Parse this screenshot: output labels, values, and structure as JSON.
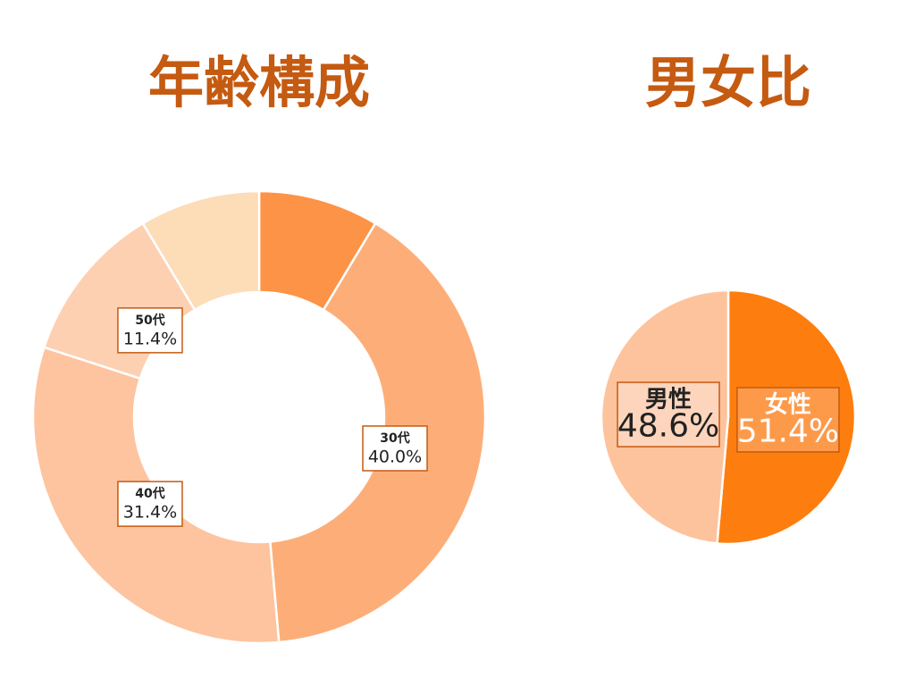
{
  "chart_data": [
    {
      "type": "donut",
      "title": "年齢構成",
      "categories": [
        null,
        "30代",
        "40代",
        "50代",
        null
      ],
      "values": [
        8.6,
        40.0,
        31.4,
        11.4,
        8.6
      ],
      "value_labels": [
        null,
        "40.0%",
        "31.4%",
        "11.4%",
        null
      ],
      "colors": [
        "#fd9346",
        "#fdae78",
        "#fdc49f",
        "#fdd0b2",
        "#fddcb8"
      ]
    },
    {
      "type": "pie",
      "title": "男女比",
      "categories": [
        "女性",
        "男性"
      ],
      "values": [
        51.4,
        48.6
      ],
      "value_labels": [
        "51.4%",
        "48.6%"
      ],
      "colors": [
        "#fd7e0e",
        "#fdc39c"
      ]
    }
  ]
}
